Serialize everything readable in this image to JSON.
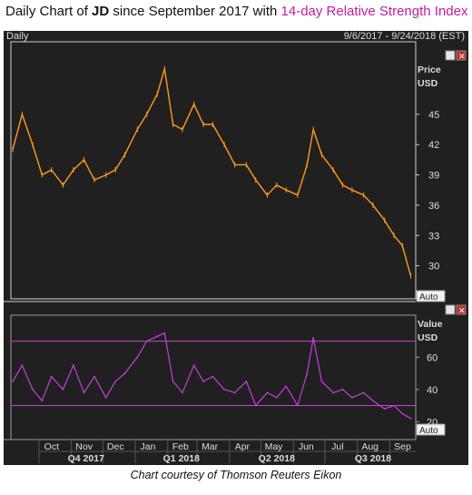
{
  "title": {
    "prefix": "Daily Chart of ",
    "ticker": "JD",
    "middle": " since September 2017 with ",
    "highlight": "14-day Relative Strength Index"
  },
  "panel": {
    "period_label": "Daily",
    "date_range": "9/6/2017 - 9/24/2018 (EST)",
    "price_axis_title": "Price",
    "price_axis_unit": "USD",
    "rsi_axis_title": "Value",
    "rsi_axis_unit": "USD",
    "auto_label": "Auto",
    "auto_label_2": "Auto",
    "close_glyph": "✕",
    "box_glyph": "□"
  },
  "footer": "Chart courtesy of Thomson Reuters Eikon",
  "colors": {
    "price": "#ff9a1f",
    "rsi": "#c83fdc",
    "rsi_band": "#c83fdc",
    "background": "#202020"
  },
  "chart_data": [
    {
      "type": "line",
      "title": "",
      "ylabel": "Price USD",
      "ylim": [
        27,
        52
      ],
      "yticks": [
        30,
        33,
        36,
        39,
        42,
        45
      ],
      "x": [
        "2017-09-06",
        "2017-09-15",
        "2017-09-25",
        "2017-10-04",
        "2017-10-13",
        "2017-10-24",
        "2017-11-03",
        "2017-11-13",
        "2017-11-23",
        "2017-12-04",
        "2017-12-13",
        "2017-12-22",
        "2018-01-03",
        "2018-01-12",
        "2018-01-22",
        "2018-01-29",
        "2018-02-06",
        "2018-02-15",
        "2018-02-26",
        "2018-03-07",
        "2018-03-16",
        "2018-03-27",
        "2018-04-06",
        "2018-04-17",
        "2018-04-26",
        "2018-05-07",
        "2018-05-16",
        "2018-05-25",
        "2018-06-05",
        "2018-06-14",
        "2018-06-20",
        "2018-06-28",
        "2018-07-09",
        "2018-07-18",
        "2018-07-27",
        "2018-08-07",
        "2018-08-16",
        "2018-08-27",
        "2018-09-05",
        "2018-09-13",
        "2018-09-21"
      ],
      "series": [
        {
          "values": [
            41.5,
            45.0,
            42.0,
            39.0,
            39.5,
            38.0,
            39.5,
            40.5,
            38.5,
            39.0,
            39.5,
            41.0,
            43.5,
            45.0,
            47.0,
            49.5,
            44.0,
            43.5,
            46.0,
            44.0,
            44.0,
            42.0,
            40.0,
            40.0,
            38.5,
            37.0,
            38.0,
            37.5,
            37.0,
            40.0,
            43.5,
            41.0,
            39.5,
            38.0,
            37.5,
            37.0,
            36.0,
            34.5,
            33.0,
            32.0,
            29.0
          ]
        }
      ],
      "xtick_months": [
        "Oct",
        "Nov",
        "Dec",
        "Jan",
        "Feb",
        "Mar",
        "Apr",
        "May",
        "Jun",
        "Jul",
        "Aug",
        "Sep"
      ],
      "xtick_quarters": [
        "Q4 2017",
        "Q1 2018",
        "Q2 2018",
        "Q3 2018"
      ]
    },
    {
      "type": "line",
      "title": "",
      "ylabel": "Value USD",
      "ylim": [
        10,
        85
      ],
      "yticks": [
        20,
        40,
        60
      ],
      "reference_lines": [
        70,
        30
      ],
      "x": [
        "2017-09-06",
        "2017-09-15",
        "2017-09-25",
        "2017-10-04",
        "2017-10-13",
        "2017-10-24",
        "2017-11-03",
        "2017-11-13",
        "2017-11-23",
        "2017-12-04",
        "2017-12-13",
        "2017-12-22",
        "2018-01-03",
        "2018-01-12",
        "2018-01-22",
        "2018-01-29",
        "2018-02-06",
        "2018-02-15",
        "2018-02-26",
        "2018-03-07",
        "2018-03-16",
        "2018-03-27",
        "2018-04-06",
        "2018-04-17",
        "2018-04-26",
        "2018-05-07",
        "2018-05-16",
        "2018-05-25",
        "2018-06-05",
        "2018-06-14",
        "2018-06-20",
        "2018-06-28",
        "2018-07-09",
        "2018-07-18",
        "2018-07-27",
        "2018-08-07",
        "2018-08-16",
        "2018-08-27",
        "2018-09-05",
        "2018-09-13",
        "2018-09-21"
      ],
      "series": [
        {
          "values": [
            45,
            55,
            40,
            33,
            48,
            40,
            55,
            38,
            48,
            35,
            45,
            50,
            60,
            70,
            73,
            75,
            45,
            38,
            55,
            45,
            48,
            40,
            38,
            45,
            30,
            38,
            35,
            42,
            30,
            50,
            72,
            45,
            38,
            40,
            35,
            38,
            33,
            28,
            30,
            25,
            22
          ]
        }
      ]
    }
  ]
}
